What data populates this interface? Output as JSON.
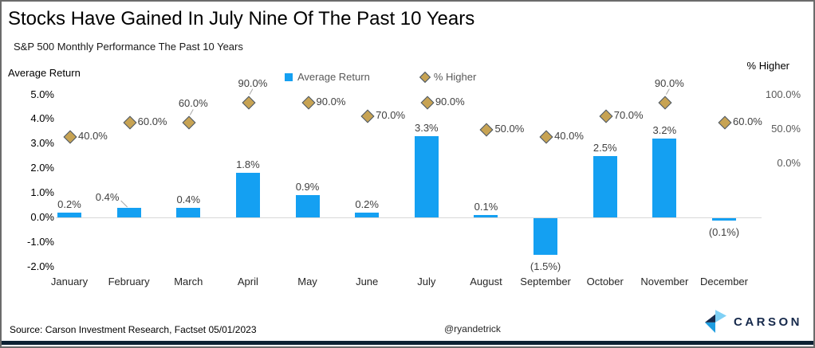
{
  "title": "Stocks Have Gained In July Nine Of The Past 10 Years",
  "subtitle": "S&P 500 Monthly Performance The Past 10 Years",
  "legend": {
    "average_return": "Average Return",
    "pct_higher": "% Higher"
  },
  "left_axis": {
    "title": "Average Return",
    "ticks": [
      "5.0%",
      "4.0%",
      "3.0%",
      "2.0%",
      "1.0%",
      "0.0%",
      "-1.0%",
      "-2.0%"
    ],
    "tick_values": [
      5,
      4,
      3,
      2,
      1,
      0,
      -1,
      -2
    ]
  },
  "right_axis": {
    "title": "% Higher",
    "ticks": [
      "100.0%",
      "50.0%",
      "0.0%"
    ],
    "tick_values": [
      100,
      50,
      0
    ]
  },
  "footer": {
    "source": "Source: Carson Investment Research, Factset 05/01/2023",
    "handle": "@ryandetrick",
    "logo_text": "CARSON"
  },
  "colors": {
    "bar": "#14A0F2",
    "diamond_fill": "#C7A353",
    "diamond_border": "#44546A",
    "navy_text": "#16294B",
    "footer_bar": "#0D2133",
    "logo_light_blue": "#7FD0F5",
    "logo_mid_blue": "#1E9DE0",
    "axis_line": "#D9D9D9",
    "leader_line": "#A6A6A6"
  },
  "chart_data": {
    "type": "combo",
    "categories": [
      "January",
      "February",
      "March",
      "April",
      "May",
      "June",
      "July",
      "August",
      "September",
      "October",
      "November",
      "December"
    ],
    "series": [
      {
        "name": "Average Return",
        "type": "bar",
        "axis": "left",
        "unit": "%",
        "values": [
          0.2,
          0.4,
          0.4,
          1.8,
          0.9,
          0.2,
          3.3,
          0.1,
          -1.5,
          2.5,
          3.2,
          -0.1
        ],
        "labels": [
          "0.2%",
          "0.4%",
          "0.4%",
          "1.8%",
          "0.9%",
          "0.2%",
          "3.3%",
          "0.1%",
          "(1.5%)",
          "2.5%",
          "3.2%",
          "(0.1%)"
        ],
        "label_pos": [
          "above",
          "above-left",
          "above",
          "above",
          "above",
          "above",
          "above",
          "above",
          "below",
          "above",
          "above",
          "below"
        ]
      },
      {
        "name": "% Higher",
        "type": "scatter",
        "marker": "diamond",
        "axis": "right",
        "unit": "%",
        "values": [
          40,
          60,
          60,
          90,
          90,
          70,
          90,
          50,
          40,
          70,
          90,
          60
        ],
        "labels": [
          "40.0%",
          "60.0%",
          "60.0%",
          "90.0%",
          "90.0%",
          "70.0%",
          "90.0%",
          "50.0%",
          "40.0%",
          "70.0%",
          "90.0%",
          "60.0%"
        ],
        "label_pos": [
          "right",
          "right",
          "above",
          "above",
          "right",
          "right",
          "right",
          "right",
          "right",
          "right",
          "above",
          "right"
        ]
      }
    ],
    "left_axis_range": [
      -2,
      5
    ],
    "right_axis_ticks_range": [
      0,
      100
    ],
    "grid": false,
    "legend_position": "top-center"
  }
}
